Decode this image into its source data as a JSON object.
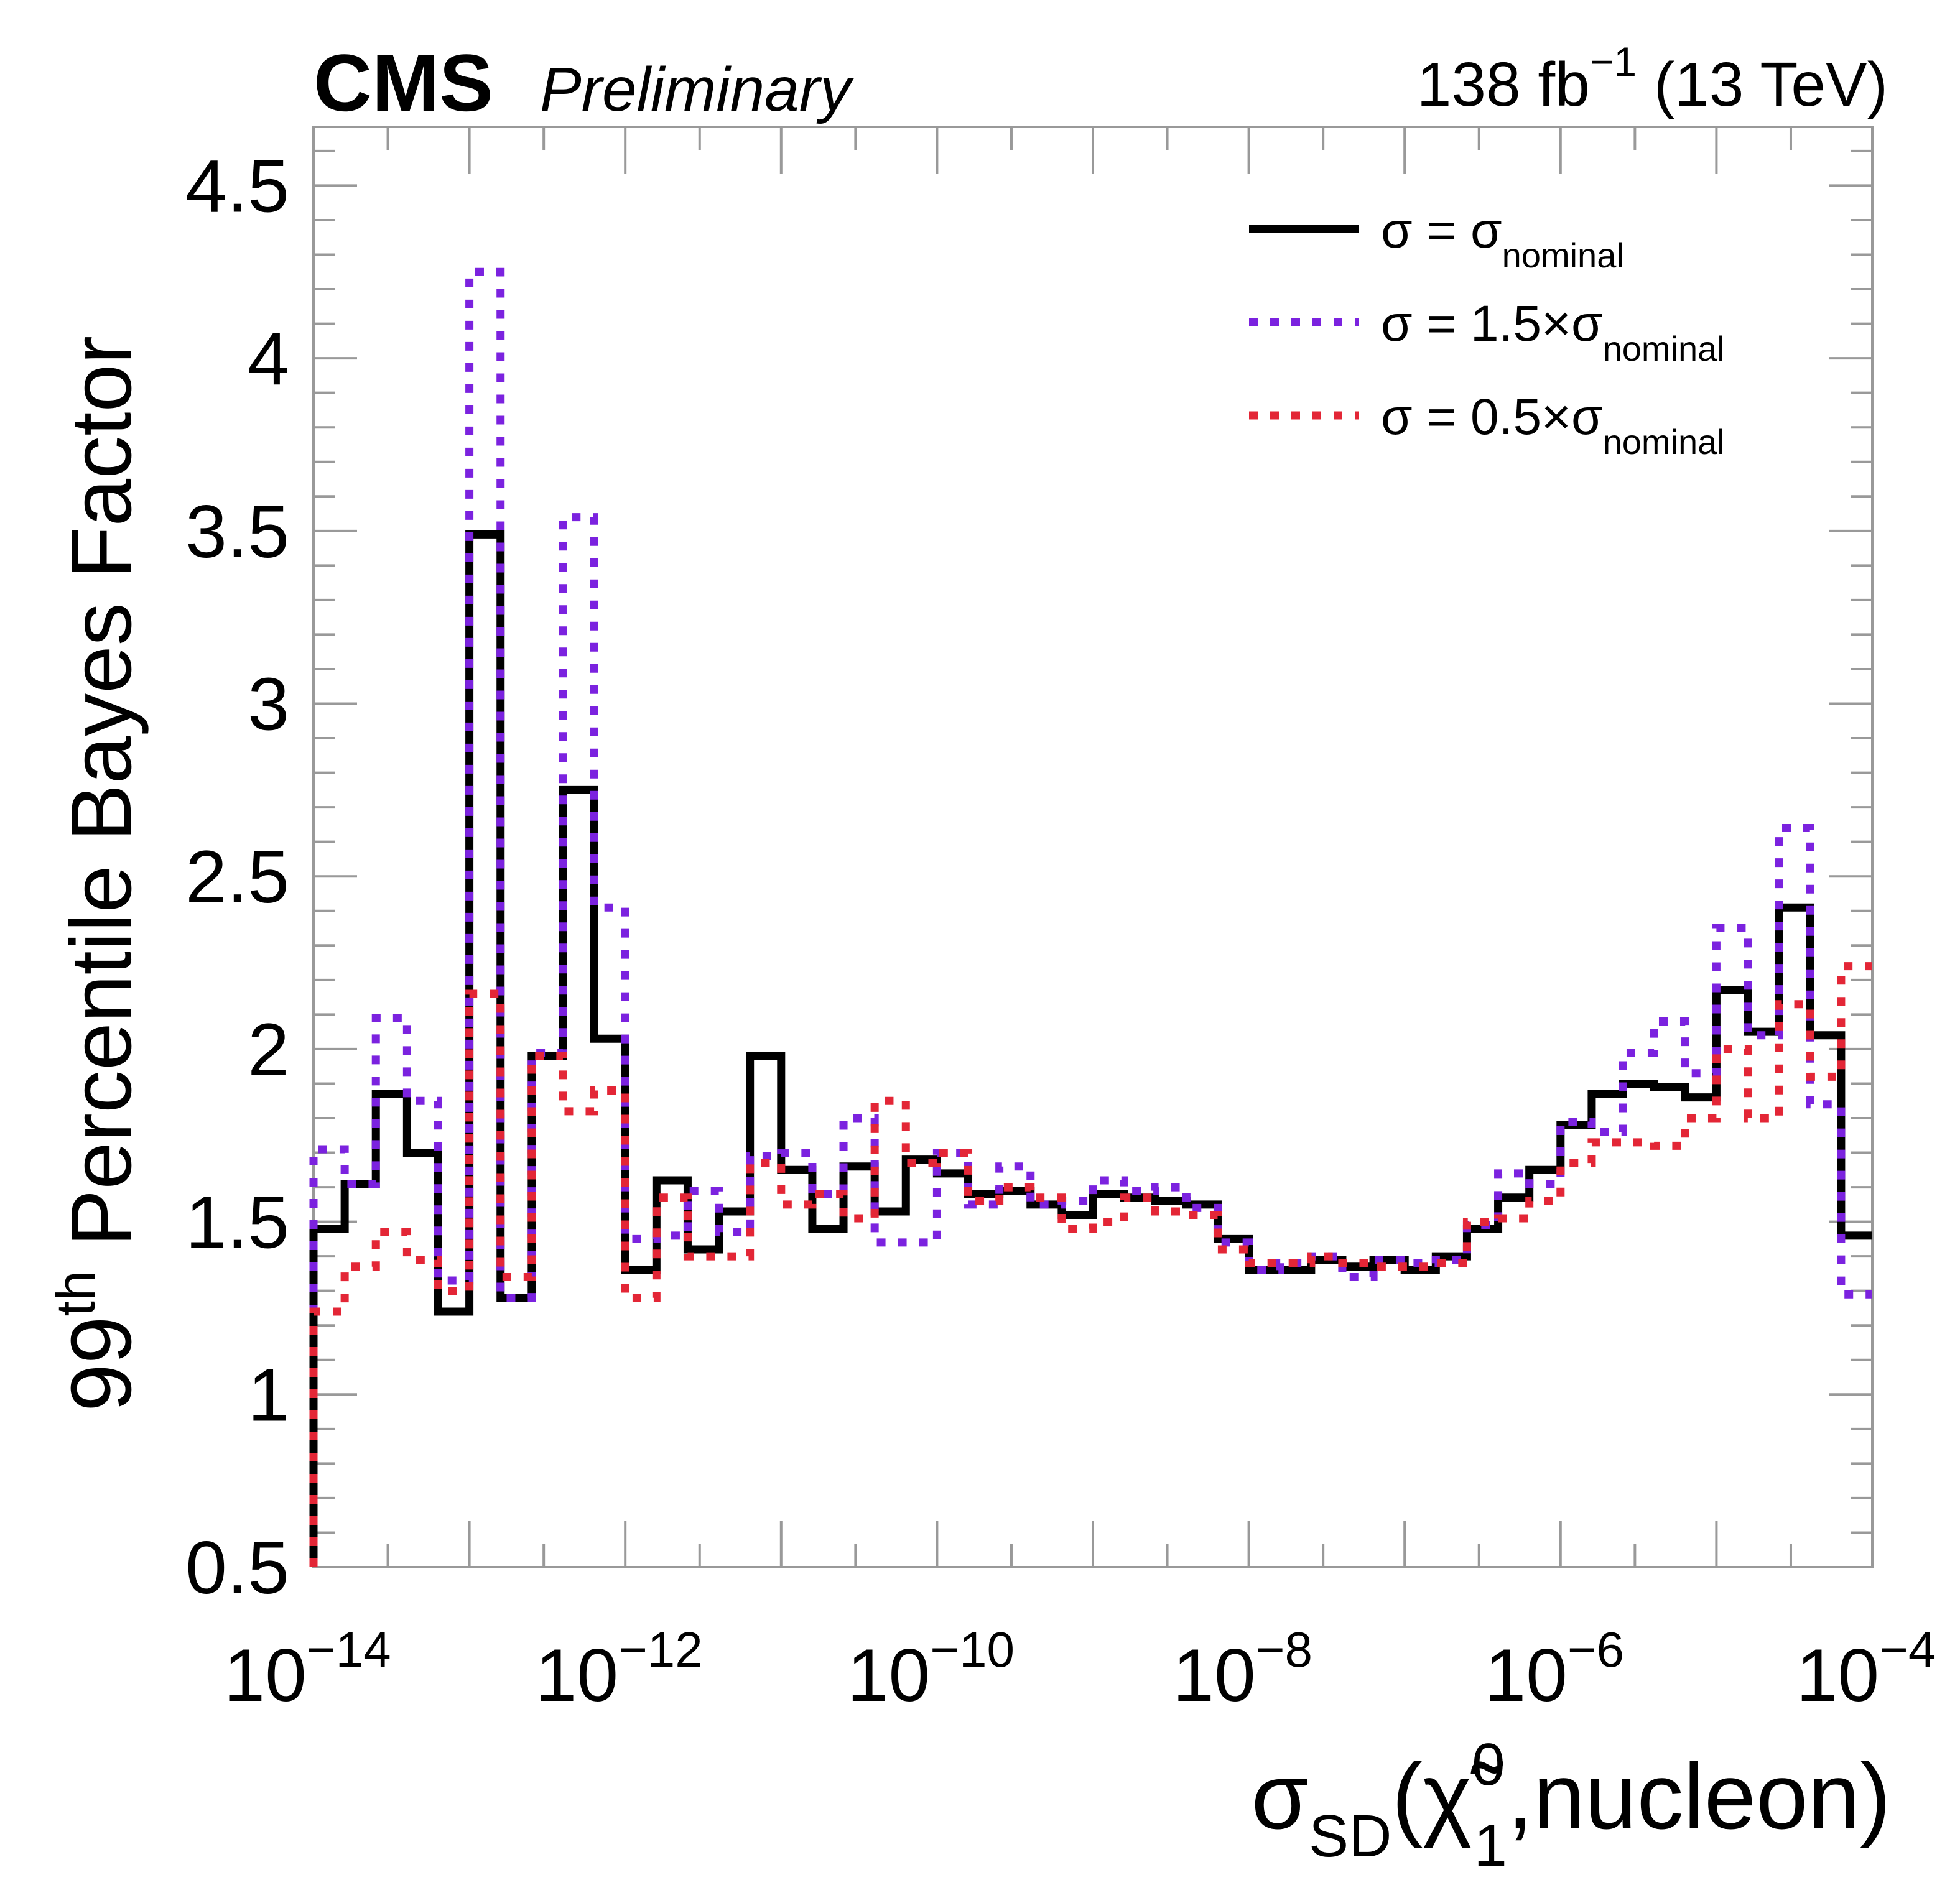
{
  "chart_data": {
    "type": "line",
    "style": "step-histogram",
    "header": {
      "experiment": "CMS",
      "status": "Preliminary",
      "lumi_value": "138 fb",
      "lumi_exponent": "−1",
      "energy": "(13 TeV)"
    },
    "xlabel": {
      "main": "σ",
      "sub": "SD",
      "open": "(",
      "particle": "χ̃",
      "particle_sup": "0",
      "particle_sub": "1",
      "rest": ",nucleon)"
    },
    "ylabel": {
      "prefix": "99",
      "sup": "th",
      "rest": " Percentile Bayes Factor"
    },
    "x_scale": "log",
    "xlim": [
      1e-14,
      0.0001
    ],
    "ylim": [
      0.5,
      4.67
    ],
    "x_ticks": [
      {
        "base": "10",
        "exp": "−14",
        "value": 1e-14
      },
      {
        "base": "10",
        "exp": "−12",
        "value": 1e-12
      },
      {
        "base": "10",
        "exp": "−10",
        "value": 1e-10
      },
      {
        "base": "10",
        "exp": "−8",
        "value": 1e-08
      },
      {
        "base": "10",
        "exp": "−6",
        "value": 1e-06
      },
      {
        "base": "10",
        "exp": "−4",
        "value": 0.0001
      }
    ],
    "y_ticks": [
      0.5,
      1,
      1.5,
      2,
      2.5,
      3,
      3.5,
      4,
      4.5
    ],
    "y_tick_labels": [
      "0.5",
      "1",
      "1.5",
      "2",
      "2.5",
      "3",
      "3.5",
      "4",
      "4.5"
    ],
    "grid": false,
    "bins_per_decade": 5,
    "bin_log10_low_edges": [
      -14.0,
      -13.8,
      -13.6,
      -13.4,
      -13.2,
      -13.0,
      -12.8,
      -12.6,
      -12.4,
      -12.2,
      -12.0,
      -11.8,
      -11.6,
      -11.4,
      -11.2,
      -11.0,
      -10.8,
      -10.6,
      -10.4,
      -10.2,
      -10.0,
      -9.8,
      -9.6,
      -9.4,
      -9.2,
      -9.0,
      -8.8,
      -8.6,
      -8.4,
      -8.2,
      -8.0,
      -7.8,
      -7.6,
      -7.4,
      -7.2,
      -7.0,
      -6.8,
      -6.6,
      -6.4,
      -6.2,
      -6.0,
      -5.8,
      -5.6,
      -5.4,
      -5.2,
      -5.0,
      -4.8,
      -4.6,
      -4.4,
      -4.2
    ],
    "legend_position": "top-right",
    "series": [
      {
        "name": "sigma-nominal",
        "label_main": "σ = σ",
        "label_sub": "nominal",
        "color": "#000000",
        "dash": "solid",
        "values": [
          1.48,
          1.61,
          1.87,
          1.7,
          1.24,
          3.49,
          1.28,
          1.98,
          2.75,
          2.03,
          1.36,
          1.62,
          1.42,
          1.53,
          1.98,
          1.65,
          1.48,
          1.66,
          1.53,
          1.68,
          1.64,
          1.58,
          1.59,
          1.55,
          1.52,
          1.58,
          1.57,
          1.56,
          1.55,
          1.45,
          1.36,
          1.36,
          1.39,
          1.37,
          1.39,
          1.36,
          1.4,
          1.48,
          1.57,
          1.65,
          1.78,
          1.87,
          1.9,
          1.89,
          1.86,
          2.17,
          2.05,
          2.41,
          2.04,
          1.46
        ]
      },
      {
        "name": "sigma-1p5x-nominal",
        "label_main": "σ = 1.5×σ",
        "label_sub": "nominal",
        "color": "#7B22DF",
        "dash": "dotted",
        "values": [
          1.71,
          1.61,
          2.09,
          1.85,
          1.33,
          4.25,
          1.28,
          1.99,
          3.54,
          2.41,
          1.45,
          1.46,
          1.59,
          1.47,
          1.69,
          1.7,
          1.58,
          1.8,
          1.44,
          1.44,
          1.7,
          1.55,
          1.66,
          1.55,
          1.56,
          1.62,
          1.59,
          1.6,
          1.54,
          1.44,
          1.36,
          1.38,
          1.4,
          1.34,
          1.39,
          1.38,
          1.39,
          1.49,
          1.64,
          1.61,
          1.79,
          1.76,
          1.99,
          2.08,
          1.93,
          2.35,
          2.04,
          2.64,
          1.84,
          1.29
        ]
      },
      {
        "name": "sigma-0p5x-nominal",
        "label_main": "σ = 0.5×σ",
        "label_sub": "nominal",
        "color": "#E32636",
        "dash": "dotted",
        "values": [
          1.24,
          1.37,
          1.47,
          1.39,
          1.3,
          2.16,
          1.34,
          1.98,
          1.82,
          1.88,
          1.28,
          1.57,
          1.4,
          1.4,
          1.67,
          1.55,
          1.58,
          1.51,
          1.85,
          1.67,
          1.7,
          1.56,
          1.6,
          1.57,
          1.48,
          1.5,
          1.57,
          1.53,
          1.52,
          1.42,
          1.38,
          1.38,
          1.4,
          1.38,
          1.37,
          1.37,
          1.38,
          1.5,
          1.51,
          1.56,
          1.67,
          1.73,
          1.73,
          1.72,
          1.8,
          2.0,
          1.8,
          2.13,
          1.92,
          2.24
        ]
      }
    ]
  }
}
